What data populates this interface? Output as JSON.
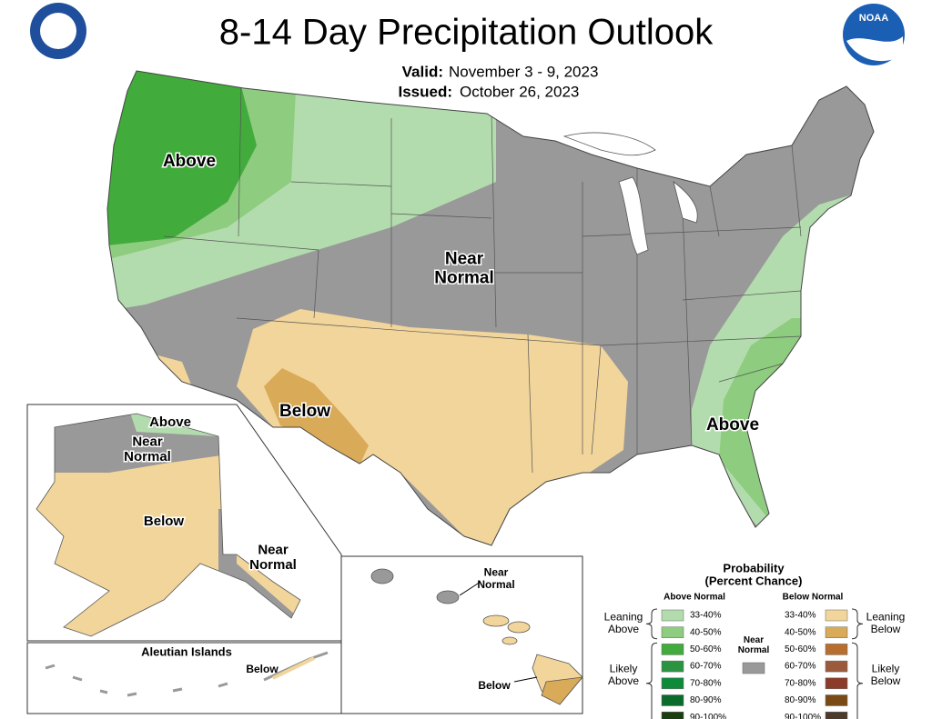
{
  "header": {
    "title": "8-14 Day Precipitation Outlook",
    "valid_label": "Valid:",
    "valid": "November 3 - 9, 2023",
    "issued_label": "Issued:",
    "issued": "October 26, 2023",
    "noaa_logo": "NOAA"
  },
  "conus_labels": [
    [
      "Above"
    ],
    [
      "Near",
      "Normal"
    ],
    [
      "Below"
    ],
    [
      "Above"
    ]
  ],
  "alaska_labels": [
    [
      "Above"
    ],
    [
      "Near",
      "Normal"
    ],
    [
      "Below"
    ],
    [
      "Near",
      "Normal"
    ]
  ],
  "aleutian": {
    "title": "Aleutian Islands",
    "label": "Below"
  },
  "hawaii_labels": [
    [
      "Near",
      "Normal"
    ],
    [
      "Below"
    ]
  ],
  "legend": {
    "title": [
      "Probability",
      "(Percent Chance)"
    ],
    "above_heading": "Above Normal",
    "below_heading": "Below Normal",
    "near": {
      "label": [
        "Near",
        "Normal"
      ],
      "color": "#999999"
    },
    "above": [
      {
        "range": "33-40%",
        "color": "#b3dcae"
      },
      {
        "range": "40-50%",
        "color": "#8ecc7f"
      },
      {
        "range": "50-60%",
        "color": "#41ab3c"
      },
      {
        "range": "60-70%",
        "color": "#2a9440"
      },
      {
        "range": "70-80%",
        "color": "#0f8a3a"
      },
      {
        "range": "80-90%",
        "color": "#0a6b2a"
      },
      {
        "range": "90-100%",
        "color": "#1b3d12"
      }
    ],
    "below": [
      {
        "range": "33-40%",
        "color": "#f2d59b"
      },
      {
        "range": "40-50%",
        "color": "#d9aa58"
      },
      {
        "range": "50-60%",
        "color": "#b86f2e"
      },
      {
        "range": "60-70%",
        "color": "#9c5a3c"
      },
      {
        "range": "70-80%",
        "color": "#8a3b29"
      },
      {
        "range": "80-90%",
        "color": "#7b4a14"
      },
      {
        "range": "90-100%",
        "color": "#4e3a2a"
      }
    ],
    "groups": {
      "leaning_above": [
        "Leaning",
        "Above"
      ],
      "likely_above": [
        "Likely",
        "Above"
      ],
      "leaning_below": [
        "Leaning",
        "Below"
      ],
      "likely_below": [
        "Likely",
        "Below"
      ]
    }
  }
}
